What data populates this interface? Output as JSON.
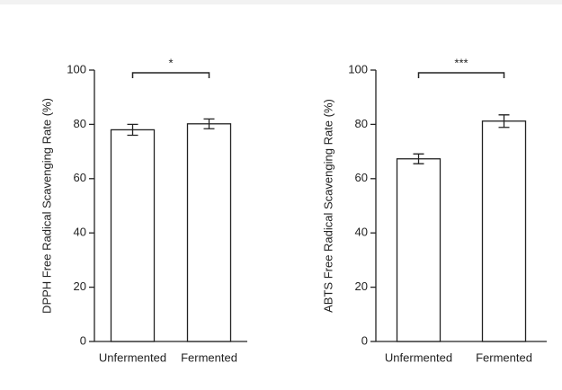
{
  "chart_data": [
    {
      "type": "bar",
      "ylabel": "DPPH Free Radical Scavenging Rate (%)",
      "categories": [
        "Unfermented",
        "Fermented"
      ],
      "values": [
        78,
        80.2
      ],
      "errors": [
        2,
        1.8
      ],
      "color": "#ffffff",
      "ylim": [
        0,
        100
      ],
      "yticks": [
        0,
        20,
        40,
        60,
        80,
        100
      ],
      "significance": "*"
    },
    {
      "type": "bar",
      "ylabel": "ABTS Free Radical Scavenging Rate (%)",
      "categories": [
        "Unfermented",
        "Fermented"
      ],
      "values": [
        67.3,
        81.2
      ],
      "errors": [
        1.8,
        2.3
      ],
      "color": "#ffffff",
      "ylim": [
        0,
        100
      ],
      "yticks": [
        0,
        20,
        40,
        60,
        80,
        100
      ],
      "significance": "***"
    }
  ]
}
